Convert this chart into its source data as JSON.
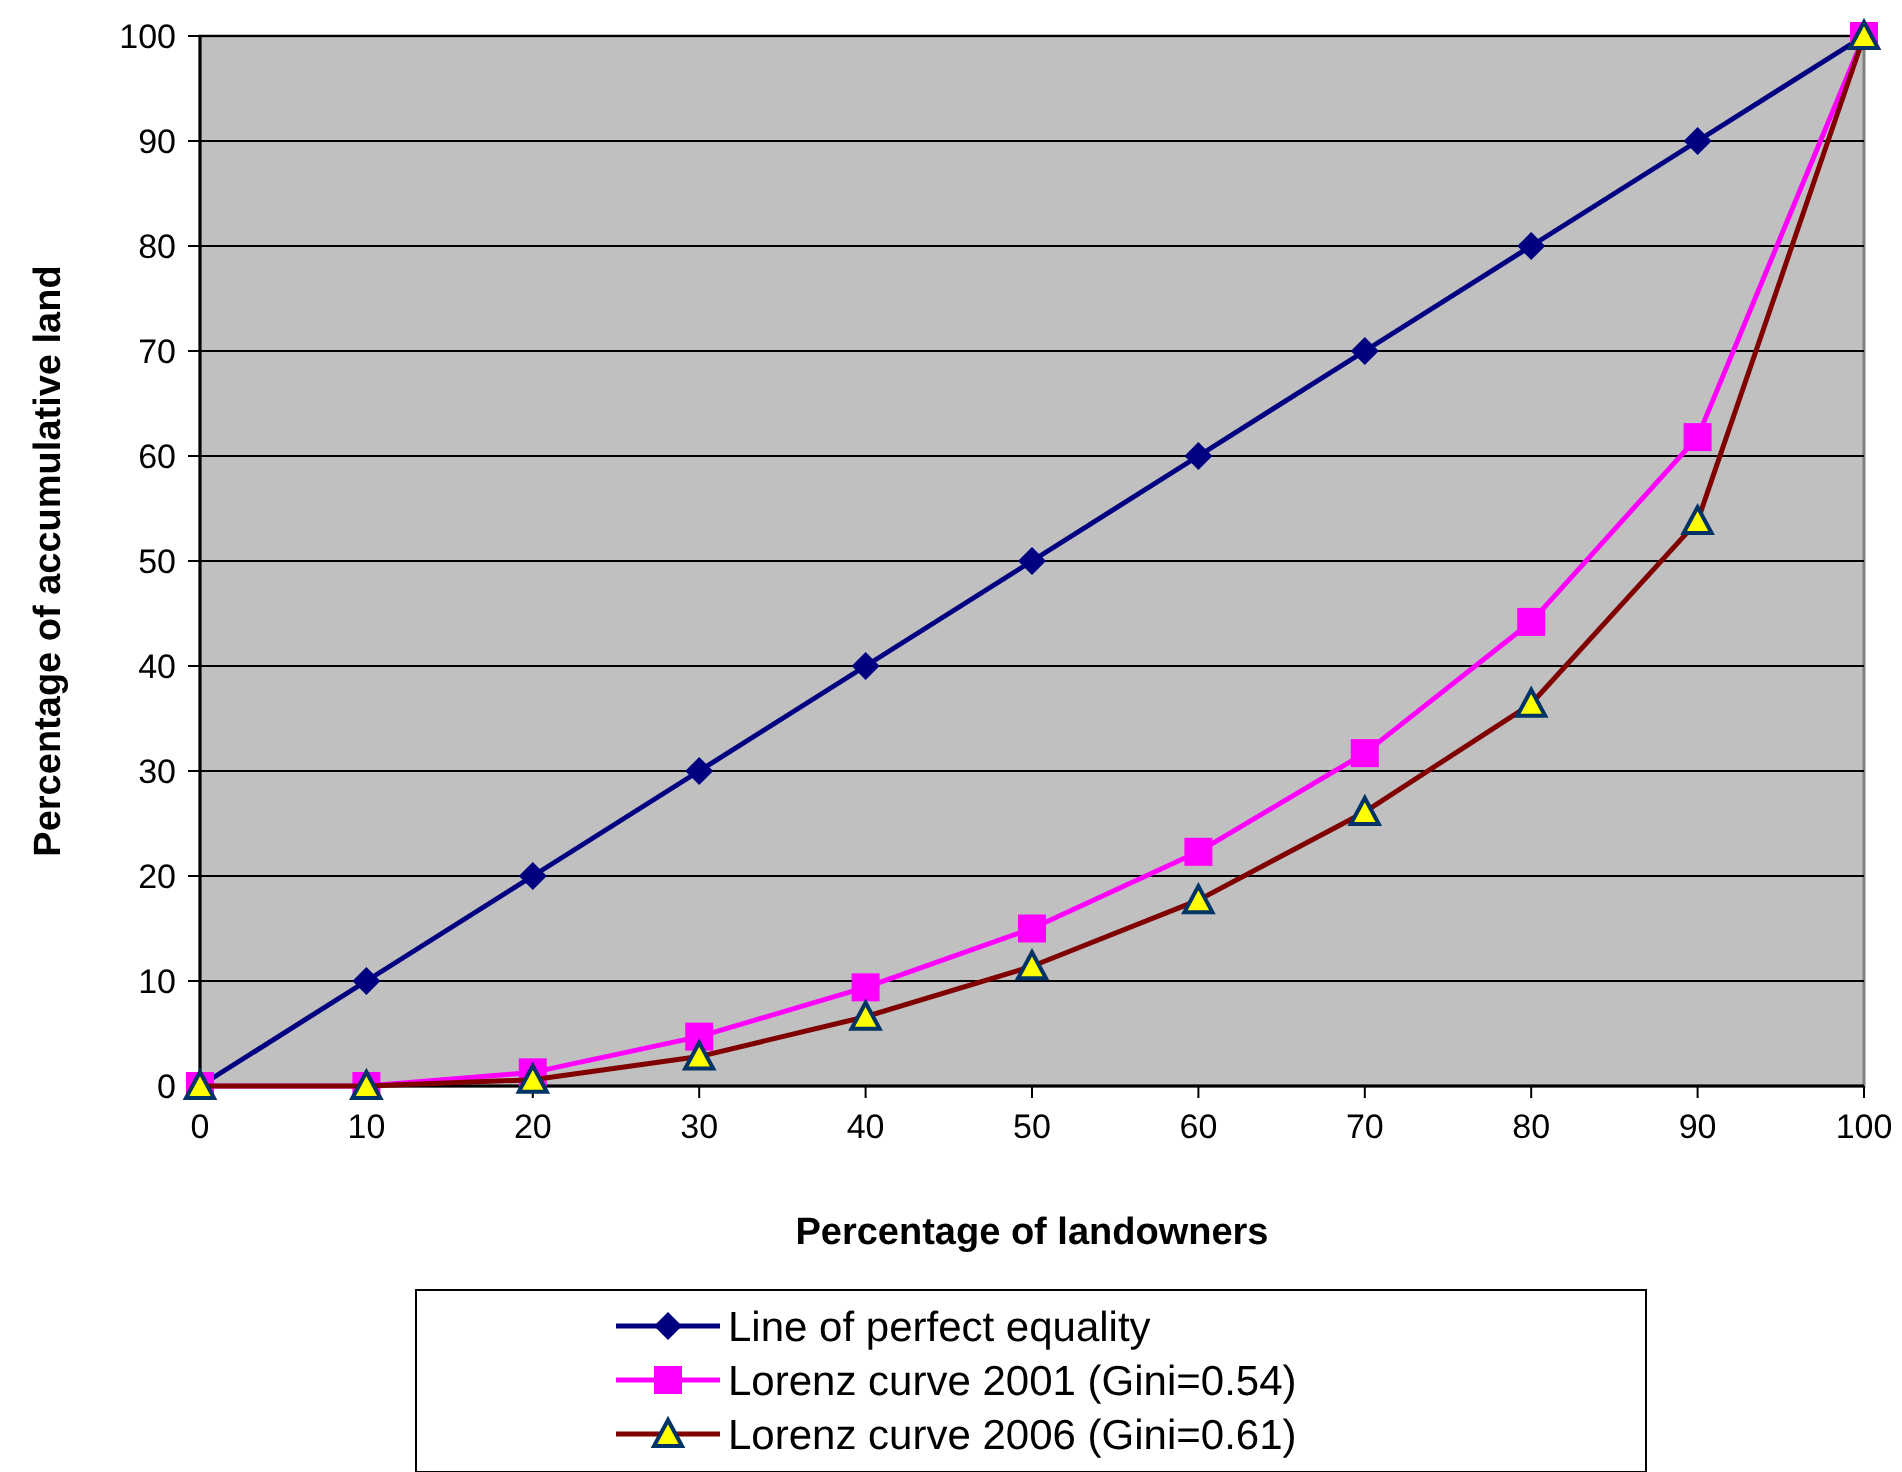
{
  "chart_data": {
    "type": "line",
    "xlabel": "Percentage of landowners",
    "ylabel": "Percentage of accumulative land",
    "x": [
      0,
      10,
      20,
      30,
      40,
      50,
      60,
      70,
      80,
      90,
      100
    ],
    "series": [
      {
        "name": "Line of perfect equality",
        "color": "#000080",
        "marker": "diamond",
        "values": [
          0,
          10,
          20,
          30,
          40,
          50,
          60,
          70,
          80,
          90,
          100
        ]
      },
      {
        "name": "Lorenz curve 2001 (Gini=0.54)",
        "color": "#ff00ff",
        "marker": "square",
        "values": [
          0,
          0,
          1.3,
          4.7,
          9.4,
          15.0,
          22.3,
          31.7,
          44.2,
          61.8,
          100
        ]
      },
      {
        "name": "Lorenz curve 2006 (Gini=0.61)",
        "color": "#800000",
        "marker": "triangle",
        "values": [
          0,
          0,
          0.6,
          2.8,
          6.6,
          11.4,
          17.7,
          26.1,
          36.4,
          53.8,
          100
        ]
      }
    ],
    "xlim": [
      0,
      100
    ],
    "ylim": [
      0,
      100
    ],
    "xticks": [
      0,
      10,
      20,
      30,
      40,
      50,
      60,
      70,
      80,
      90,
      100
    ],
    "yticks": [
      0,
      10,
      20,
      30,
      40,
      50,
      60,
      70,
      80,
      90,
      100
    ],
    "grid": "y",
    "legend": "bottom"
  }
}
